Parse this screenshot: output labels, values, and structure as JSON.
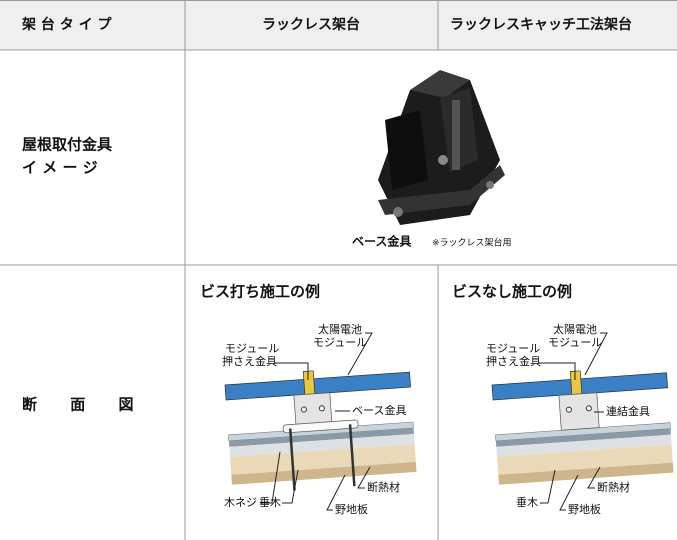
{
  "header": {
    "row_label": "架 台 タ イ プ",
    "columns": [
      "ラックレス架台",
      "ラックレスキャッチ工法架台"
    ]
  },
  "rows": [
    {
      "label": [
        "屋根取付金具",
        "イ メ ー ジ"
      ],
      "caption": "ベース金具",
      "note": "※ラックレス架台用"
    },
    {
      "label": "断 面 図",
      "panels": [
        {
          "title": "ビス打ち施工の例",
          "labels": {
            "module": [
              "太陽電池",
              "モジュール"
            ],
            "clamp": [
              "モジュール",
              "押さえ金具"
            ],
            "bracket": "ベース金具",
            "screw": "木ネジ",
            "rafter": "垂木",
            "sheathing": "野地板",
            "insulation": "断熱材"
          }
        },
        {
          "title": "ビスなし施工の例",
          "labels": {
            "module": [
              "太陽電池",
              "モジュール"
            ],
            "clamp": [
              "モジュール",
              "押さえ金具"
            ],
            "bracket": "連結金具",
            "rafter": "垂木",
            "sheathing": "野地板",
            "insulation": "断熱材"
          }
        }
      ]
    }
  ]
}
